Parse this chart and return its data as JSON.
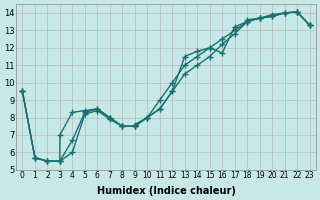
{
  "title": "",
  "xlabel": "Humidex (Indice chaleur)",
  "ylabel": "",
  "background_color": "#c8e8e8",
  "grid_color": "#aaaaaa",
  "line_color": "#1a7070",
  "xlim": [
    -0.5,
    23.5
  ],
  "ylim": [
    5,
    14.5
  ],
  "xticks": [
    0,
    1,
    2,
    3,
    4,
    5,
    6,
    7,
    8,
    9,
    10,
    11,
    12,
    13,
    14,
    15,
    16,
    17,
    18,
    19,
    20,
    21,
    22,
    23
  ],
  "yticks": [
    5,
    6,
    7,
    8,
    9,
    10,
    11,
    12,
    13,
    14
  ],
  "series1": [
    [
      0,
      9.5
    ],
    [
      1,
      5.7
    ],
    [
      2,
      5.5
    ],
    [
      3,
      5.5
    ],
    [
      3,
      7.0
    ],
    [
      4,
      8.3
    ],
    [
      5,
      8.4
    ],
    [
      6,
      8.5
    ],
    [
      7,
      8.0
    ],
    [
      8,
      7.5
    ],
    [
      9,
      7.5
    ],
    [
      9,
      7.6
    ],
    [
      10,
      8.0
    ],
    [
      11,
      8.5
    ],
    [
      12,
      9.5
    ],
    [
      13,
      11.5
    ],
    [
      14,
      11.8
    ],
    [
      15,
      12.0
    ],
    [
      16,
      11.7
    ],
    [
      17,
      13.2
    ],
    [
      18,
      13.5
    ],
    [
      18,
      13.6
    ],
    [
      19,
      13.7
    ],
    [
      20,
      13.8
    ],
    [
      21,
      14.0
    ],
    [
      22,
      14.05
    ],
    [
      23,
      13.3
    ]
  ],
  "series2": [
    [
      0,
      9.5
    ],
    [
      1,
      5.7
    ],
    [
      2,
      5.5
    ],
    [
      3,
      5.5
    ],
    [
      4,
      6.7
    ],
    [
      5,
      8.3
    ],
    [
      6,
      8.5
    ],
    [
      7,
      8.0
    ],
    [
      8,
      7.5
    ],
    [
      9,
      7.5
    ],
    [
      10,
      8.0
    ],
    [
      11,
      8.5
    ],
    [
      12,
      9.5
    ],
    [
      13,
      10.5
    ],
    [
      14,
      11.0
    ],
    [
      15,
      11.5
    ],
    [
      16,
      12.2
    ],
    [
      17,
      12.8
    ],
    [
      18,
      13.5
    ],
    [
      19,
      13.7
    ],
    [
      20,
      13.8
    ],
    [
      21,
      14.0
    ],
    [
      22,
      14.05
    ],
    [
      23,
      13.3
    ]
  ],
  "series3": [
    [
      0,
      9.5
    ],
    [
      1,
      5.7
    ],
    [
      2,
      5.5
    ],
    [
      3,
      5.5
    ],
    [
      4,
      6.0
    ],
    [
      5,
      8.2
    ],
    [
      6,
      8.4
    ],
    [
      7,
      7.9
    ],
    [
      8,
      7.5
    ],
    [
      9,
      7.5
    ],
    [
      10,
      8.0
    ],
    [
      11,
      9.0
    ],
    [
      12,
      10.0
    ],
    [
      13,
      11.0
    ],
    [
      14,
      11.5
    ],
    [
      15,
      12.0
    ],
    [
      16,
      12.5
    ],
    [
      17,
      13.0
    ],
    [
      18,
      13.5
    ],
    [
      19,
      13.7
    ],
    [
      20,
      13.9
    ],
    [
      21,
      14.0
    ],
    [
      22,
      14.05
    ],
    [
      23,
      13.3
    ]
  ]
}
